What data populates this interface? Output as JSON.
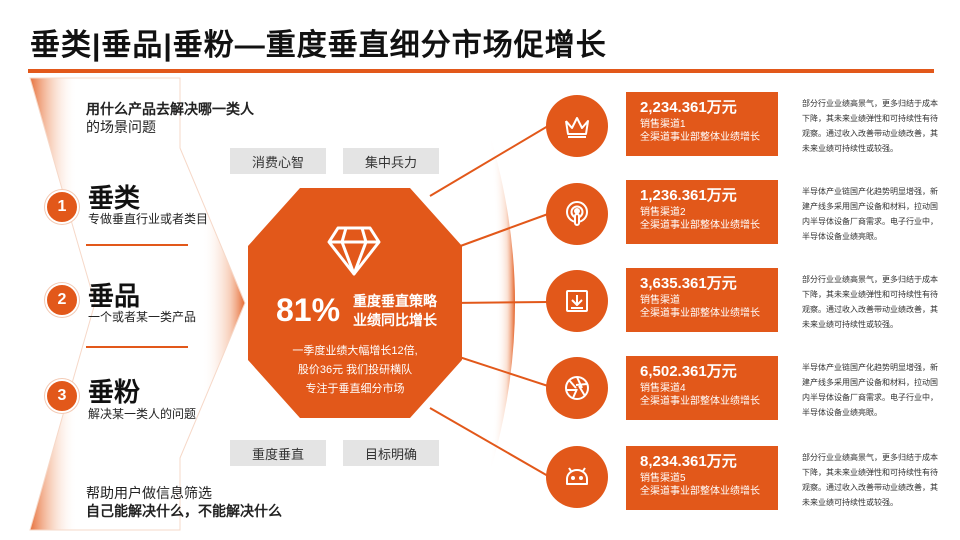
{
  "page_title": "垂类|垂品|垂粉—重度垂直细分市场促增长",
  "left": {
    "top_line1": "用什么产品去解决哪一类人",
    "top_line2": "的场景问题",
    "items": [
      {
        "number": "1",
        "title": "垂类",
        "subtitle": "专做垂直行业或者类目"
      },
      {
        "number": "2",
        "title": "垂品",
        "subtitle": "一个或者某一类产品"
      },
      {
        "number": "3",
        "title": "垂粉",
        "subtitle": "解决某一类人的问题"
      }
    ],
    "bottom_line1": "帮助用户做信息筛选",
    "bottom_line2": "自己能解决什么，不能解决什么"
  },
  "tags": [
    "消费心智",
    "集中兵力",
    "重度垂直",
    "目标明确"
  ],
  "center": {
    "percent": "81%",
    "headline_line1": "重度垂直策略",
    "headline_line2": "业绩同比增长",
    "body_line1": "一季度业绩大幅增长12倍,",
    "body_line2": "股价36元 我们投研横队",
    "body_line3": "专注于垂直细分市场",
    "icon": "diamond-icon"
  },
  "cards": [
    {
      "icon": "crown-icon",
      "value": "2,234.361万元",
      "channel": "销售渠道1",
      "desc": "全渠道事业部整体业绩增长",
      "note": "部分行业业绩高景气，更多归结于成本下降，其未来业绩弹性和可持续性有待观察。通过收入改善带动业绩改善，其未来业绩可持续性或较强。"
    },
    {
      "icon": "podcast-icon",
      "value": "1,236.361万元",
      "channel": "销售渠道2",
      "desc": "全渠道事业部整体业绩增长",
      "note": "半导体产业链国产化趋势明显增强，新建产线多采用国产设备和材料，拉动国内半导体设备厂商需求。电子行业中，半导体设备业绩亮眼。"
    },
    {
      "icon": "download-tray-icon",
      "value": "3,635.361万元",
      "channel": "销售渠道",
      "desc": "全渠道事业部整体业绩增长",
      "note": "部分行业业绩高景气，更多归结于成本下降，其未来业绩弹性和可持续性有待观察。通过收入改善带动业绩改善，其未来业绩可持续性或较强。"
    },
    {
      "icon": "aperture-icon",
      "value": "6,502.361万元",
      "channel": "销售渠道4",
      "desc": "全渠道事业部整体业绩增长",
      "note": "半导体产业链国产化趋势明显增强，新建产线多采用国产设备和材料，拉动国内半导体设备厂商需求。电子行业中，半导体设备业绩亮眼。"
    },
    {
      "icon": "android-icon",
      "value": "8,234.361万元",
      "channel": "销售渠道5",
      "desc": "全渠道事业部整体业绩增长",
      "note": "部分行业业绩高景气，更多归结于成本下降，其未来业绩弹性和可持续性有待观察。通过收入改善带动业绩改善，其未来业绩可持续性或较强。"
    }
  ],
  "colors": {
    "accent": "#e2581a",
    "tag_bg": "#e4e4e4",
    "text": "#222222"
  }
}
